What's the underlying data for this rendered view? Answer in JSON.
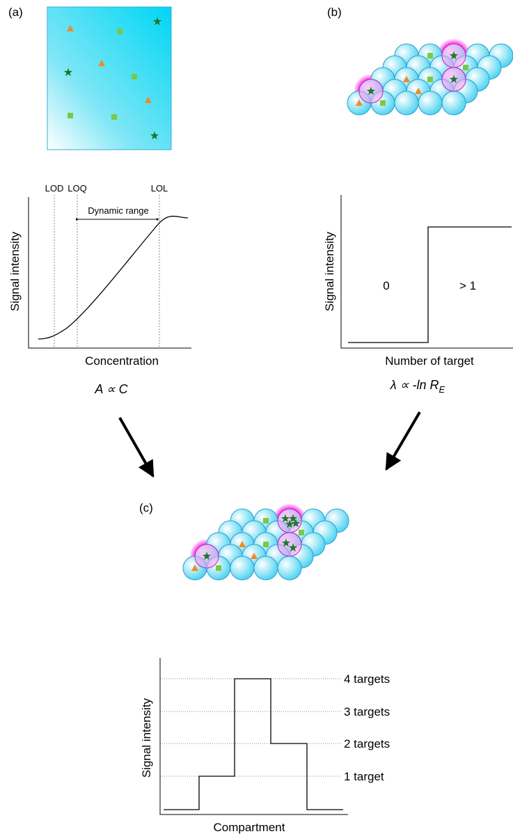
{
  "panel_a": {
    "label": "(a)",
    "lod": "LOD",
    "loq": "LOQ",
    "lol": "LOL",
    "range_label": "Dynamic range",
    "y_label": "Signal intensity",
    "x_label": "Concentration",
    "equation": "A ∝ C"
  },
  "panel_b": {
    "label": "(b)",
    "low_label": "0",
    "high_label": "> 1",
    "y_label": "Signal intensity",
    "x_label": "Number of target",
    "equation": {
      "main": "λ ∝ -ln R",
      "subscript": "E"
    }
  },
  "panel_c": {
    "label": "(c)",
    "y_label": "Signal intensity",
    "x_label": "Compartment",
    "levels": [
      "1 target",
      "2 targets",
      "3 targets",
      "4 targets"
    ]
  }
}
